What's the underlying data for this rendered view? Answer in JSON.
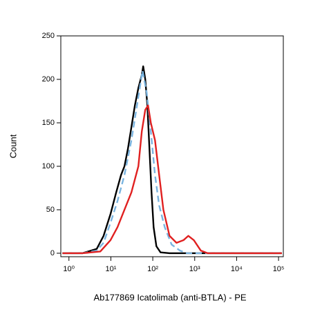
{
  "chart_data": {
    "type": "line",
    "x_label": "Ab177869 Icatolimab (anti-BTLA) - PE",
    "y_label": "Count",
    "xscale": "log",
    "xlim": [
      0.64,
      130000
    ],
    "ylim": [
      -4,
      250
    ],
    "xticks": [
      {
        "value": 1,
        "label": "10⁰"
      },
      {
        "value": 10,
        "label": "10¹"
      },
      {
        "value": 100,
        "label": "10²"
      },
      {
        "value": 1000,
        "label": "10³"
      },
      {
        "value": 10000,
        "label": "10⁴"
      },
      {
        "value": 100000,
        "label": "10⁵"
      }
    ],
    "yticks": [
      0,
      50,
      100,
      150,
      200,
      250
    ],
    "series": [
      {
        "name": "Black",
        "color": "#000000",
        "dash": false,
        "x": [
          0.7,
          2.1,
          4.6,
          6.7,
          9.8,
          13.4,
          17.5,
          21.1,
          25.5,
          30.9,
          37.4,
          45.3,
          54.7,
          59.1,
          66.2,
          74.3,
          83.3,
          93.4,
          104.7,
          122,
          153,
          251,
          120000
        ],
        "values": [
          0,
          0,
          5,
          20,
          45,
          70,
          90,
          100,
          120,
          145,
          170,
          190,
          205,
          215,
          200,
          170,
          120,
          70,
          30,
          8,
          1,
          0,
          0
        ]
      },
      {
        "name": "Blue",
        "color": "#7ab4e0",
        "dash": true,
        "x": [
          0.7,
          2.1,
          4.6,
          6.7,
          9.8,
          14.4,
          21.1,
          30.9,
          45.3,
          56.9,
          71.5,
          89.9,
          113,
          142,
          193,
          281,
          446,
          653,
          120000
        ],
        "values": [
          0,
          0,
          3,
          12,
          35,
          60,
          90,
          130,
          180,
          210,
          185,
          140,
          90,
          55,
          30,
          10,
          3,
          0,
          0
        ]
      },
      {
        "name": "Red",
        "color": "#e02020",
        "dash": false,
        "x": [
          0.7,
          2.1,
          5.6,
          9.8,
          14.4,
          21.1,
          30.9,
          45.3,
          54.7,
          66.2,
          77.1,
          89.9,
          113,
          142,
          179,
          251,
          368,
          540,
          705,
          955,
          1400,
          2050,
          120000
        ],
        "values": [
          0,
          0,
          2,
          15,
          30,
          50,
          70,
          100,
          140,
          165,
          170,
          150,
          130,
          90,
          50,
          20,
          12,
          15,
          20,
          15,
          3,
          0,
          0
        ]
      }
    ]
  }
}
